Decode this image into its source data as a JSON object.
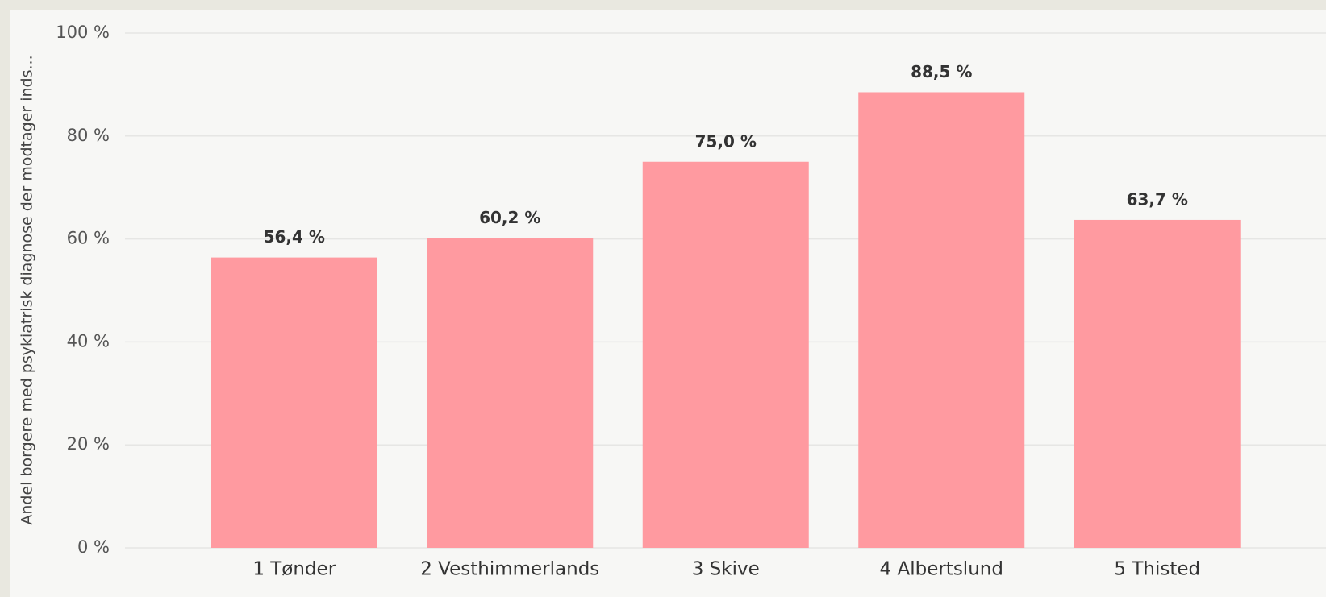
{
  "chart_data": {
    "type": "bar",
    "y_axis_label": "Andel borgere med psykiatrisk diagnose der modtager inds...",
    "categories": [
      "1 Tønder",
      "2 Vesthimmerlands",
      "3 Skive",
      "4 Albertslund",
      "5 Thisted"
    ],
    "values": [
      56.4,
      60.2,
      75.0,
      88.5,
      63.7
    ],
    "value_labels": [
      "56,4 %",
      "60,2 %",
      "75,0 %",
      "88,5 %",
      "63,7 %"
    ],
    "color": "#ff9aa0",
    "ylim": [
      0,
      100
    ],
    "yticks": [
      {
        "value": 0,
        "label": "0 %"
      },
      {
        "value": 20,
        "label": "20 %"
      },
      {
        "value": 40,
        "label": "40 %"
      },
      {
        "value": 60,
        "label": "60 %"
      },
      {
        "value": 80,
        "label": "80 %"
      },
      {
        "value": 100,
        "label": "100 %"
      }
    ],
    "grid": true
  }
}
